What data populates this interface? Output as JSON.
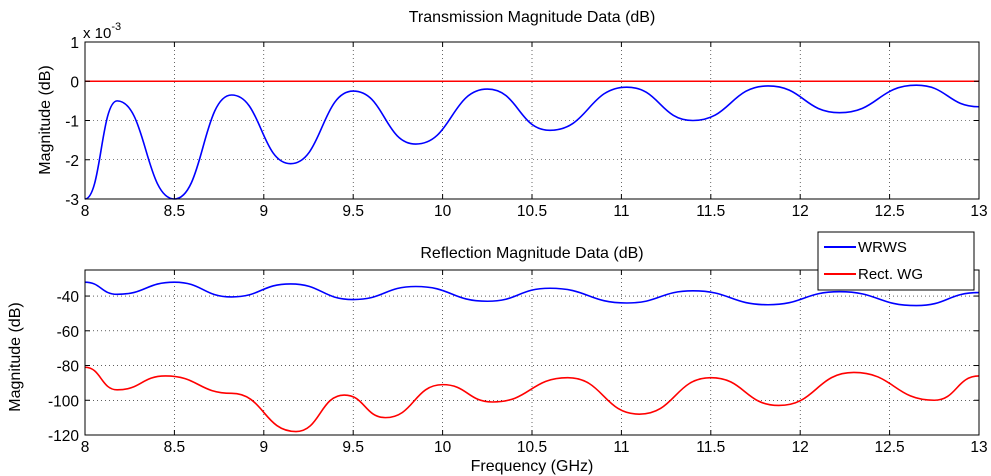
{
  "chart_data": [
    {
      "type": "line",
      "title": "Transmission Magnitude Data (dB)",
      "xlabel": "",
      "ylabel": "Magnitude (dB)",
      "y_multiplier": "x 10",
      "y_multiplier_exponent": "-3",
      "xlim": [
        8,
        13
      ],
      "ylim": [
        -3,
        1
      ],
      "x_ticks": [
        "8",
        "8.5",
        "9",
        "9.5",
        "10",
        "10.5",
        "11",
        "11.5",
        "12",
        "12.5",
        "13"
      ],
      "y_ticks": [
        "1",
        "0",
        "-1",
        "-2",
        "-3"
      ],
      "grid": true,
      "series": [
        {
          "name": "WRWS",
          "color": "#0000ff",
          "x": [
            8.0,
            8.18,
            8.5,
            8.82,
            9.15,
            9.5,
            9.85,
            10.25,
            10.6,
            11.03,
            11.4,
            11.82,
            12.22,
            12.65,
            13.0
          ],
          "y": [
            -3.0,
            -0.5,
            -3.0,
            -0.35,
            -2.1,
            -0.25,
            -1.6,
            -0.2,
            -1.25,
            -0.15,
            -1.0,
            -0.12,
            -0.8,
            -0.1,
            -0.65
          ]
        },
        {
          "name": "Rect. WG",
          "color": "#ff0000",
          "x": [
            8,
            13
          ],
          "y": [
            0,
            0
          ]
        }
      ]
    },
    {
      "type": "line",
      "title": "Reflection Magnitude Data (dB)",
      "xlabel": "Frequency (GHz)",
      "ylabel": "Magnitude (dB)",
      "xlim": [
        8,
        13
      ],
      "ylim": [
        -120,
        -25
      ],
      "x_ticks": [
        "8",
        "8.5",
        "9",
        "9.5",
        "10",
        "10.5",
        "11",
        "11.5",
        "12",
        "12.5",
        "13"
      ],
      "y_ticks": [
        "-40",
        "-60",
        "-80",
        "-100",
        "-120"
      ],
      "grid": true,
      "legend": {
        "position": "top-right",
        "entries": [
          {
            "label": "WRWS",
            "color": "#0000ff"
          },
          {
            "label": "Rect. WG",
            "color": "#ff0000"
          }
        ]
      },
      "series": [
        {
          "name": "WRWS",
          "color": "#0000ff",
          "x": [
            8.0,
            8.18,
            8.5,
            8.82,
            9.15,
            9.5,
            9.85,
            10.25,
            10.6,
            11.03,
            11.4,
            11.82,
            12.22,
            12.65,
            13.0
          ],
          "y": [
            -32,
            -39,
            -32,
            -40.5,
            -33,
            -42,
            -34.5,
            -43,
            -35.5,
            -44,
            -37,
            -45,
            -37.5,
            -45.5,
            -38
          ]
        },
        {
          "name": "Rect. WG",
          "color": "#ff0000",
          "x": [
            8.0,
            8.18,
            8.45,
            8.82,
            9.18,
            9.45,
            9.68,
            10.0,
            10.28,
            10.7,
            11.1,
            11.5,
            11.88,
            12.3,
            12.75,
            13.0
          ],
          "y": [
            -81,
            -94,
            -86,
            -96,
            -118,
            -97,
            -110,
            -91,
            -101,
            -87,
            -108,
            -87,
            -103,
            -84,
            -100,
            -86
          ]
        }
      ]
    }
  ]
}
